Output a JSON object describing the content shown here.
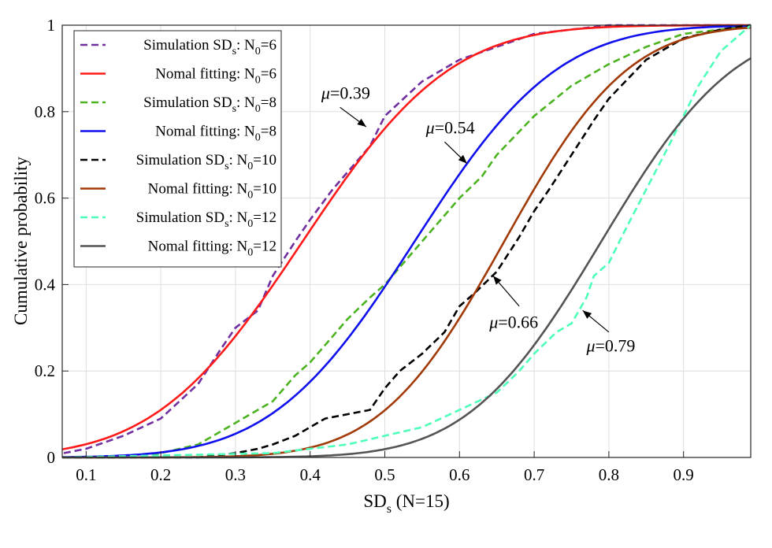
{
  "chart_data": {
    "type": "line",
    "title": "",
    "xlabel": "SD",
    "xlabel_sub": "s",
    "xlabel_suffix": " (N=15)",
    "ylabel": "Cumulative probability",
    "xlim": [
      0.068,
      0.99
    ],
    "ylim": [
      0,
      1
    ],
    "grid": true,
    "legend_position": "top-left",
    "xticks": [
      "0.1",
      "0.2",
      "0.3",
      "0.4",
      "0.5",
      "0.6",
      "0.7",
      "0.8",
      "0.9"
    ],
    "xtick_values": [
      0.1,
      0.2,
      0.3,
      0.4,
      0.5,
      0.6,
      0.7,
      0.8,
      0.9
    ],
    "yticks": [
      "0",
      "0.2",
      "0.4",
      "0.6",
      "0.8",
      "1"
    ],
    "ytick_values": [
      0,
      0.2,
      0.4,
      0.6,
      0.8,
      1
    ],
    "series": [
      {
        "name": "Simulation SDs: N0=6",
        "label_pre": "Simulation SD",
        "label_sub": "s",
        "label_mid": ": N",
        "label_sub2": "0",
        "label_post": "=6",
        "style": "dashed",
        "color": "#7030a0",
        "x": [
          0.07,
          0.1,
          0.15,
          0.2,
          0.25,
          0.28,
          0.3,
          0.33,
          0.35,
          0.38,
          0.4,
          0.43,
          0.45,
          0.48,
          0.5,
          0.55,
          0.6,
          0.65,
          0.7,
          0.75,
          0.8,
          0.9,
          0.99
        ],
        "y": [
          0.01,
          0.02,
          0.05,
          0.09,
          0.17,
          0.25,
          0.3,
          0.34,
          0.42,
          0.5,
          0.55,
          0.62,
          0.66,
          0.72,
          0.79,
          0.87,
          0.92,
          0.95,
          0.98,
          0.99,
          1.0,
          1.0,
          1.0
        ]
      },
      {
        "name": "Nomal fitting: N0=6",
        "label_pre": "Nomal fitting",
        "label_sub": "",
        "label_mid": ": N",
        "label_sub2": "0",
        "label_post": "=6",
        "style": "solid",
        "color": "#ff1a1a",
        "mu": 0.39,
        "sigma": 0.155
      },
      {
        "name": "Simulation SDs: N0=8",
        "label_pre": "Simulation SD",
        "label_sub": "s",
        "label_mid": ": N",
        "label_sub2": "0",
        "label_post": "=8",
        "style": "dashed",
        "color": "#4cb320",
        "x": [
          0.07,
          0.15,
          0.2,
          0.25,
          0.3,
          0.35,
          0.38,
          0.4,
          0.43,
          0.45,
          0.48,
          0.5,
          0.55,
          0.58,
          0.6,
          0.63,
          0.65,
          0.7,
          0.75,
          0.8,
          0.85,
          0.9,
          0.95,
          0.99
        ],
        "y": [
          0.0,
          0.0,
          0.01,
          0.03,
          0.08,
          0.13,
          0.19,
          0.22,
          0.28,
          0.32,
          0.37,
          0.4,
          0.5,
          0.56,
          0.6,
          0.65,
          0.7,
          0.79,
          0.86,
          0.91,
          0.95,
          0.98,
          0.99,
          1.0
        ]
      },
      {
        "name": "Nomal fitting: N0=8",
        "label_pre": "Nomal fitting",
        "label_sub": "",
        "label_mid": ": N",
        "label_sub2": "0",
        "label_post": "=8",
        "style": "solid",
        "color": "#1010ee",
        "mu": 0.54,
        "sigma": 0.15
      },
      {
        "name": "Simulation SDs: N0=10",
        "label_pre": "Simulation SD",
        "label_sub": "s",
        "label_mid": ": N",
        "label_sub2": "0",
        "label_post": "=10",
        "style": "dashed",
        "color": "#000000",
        "x": [
          0.07,
          0.25,
          0.3,
          0.33,
          0.35,
          0.38,
          0.4,
          0.42,
          0.45,
          0.48,
          0.5,
          0.52,
          0.55,
          0.58,
          0.6,
          0.62,
          0.65,
          0.68,
          0.7,
          0.72,
          0.75,
          0.78,
          0.8,
          0.85,
          0.9,
          0.95,
          0.99
        ],
        "y": [
          0.0,
          0.0,
          0.01,
          0.02,
          0.03,
          0.05,
          0.07,
          0.09,
          0.1,
          0.11,
          0.16,
          0.2,
          0.24,
          0.29,
          0.35,
          0.38,
          0.43,
          0.51,
          0.57,
          0.62,
          0.7,
          0.78,
          0.83,
          0.92,
          0.97,
          0.99,
          1.0
        ]
      },
      {
        "name": "Nomal fitting: N0=10",
        "label_pre": "Nomal fitting",
        "label_sub": "",
        "label_mid": ": N",
        "label_sub2": "0",
        "label_post": "=10",
        "style": "solid",
        "color": "#a23a08",
        "mu": 0.66,
        "sigma": 0.13
      },
      {
        "name": "Simulation SDs: N0=12",
        "label_pre": "Simulation SD",
        "label_sub": "s",
        "label_mid": ": N",
        "label_sub2": "0",
        "label_post": "=12",
        "style": "dashed",
        "color": "#4dffb8",
        "x": [
          0.07,
          0.35,
          0.4,
          0.45,
          0.5,
          0.55,
          0.6,
          0.65,
          0.68,
          0.7,
          0.73,
          0.75,
          0.77,
          0.78,
          0.8,
          0.82,
          0.85,
          0.88,
          0.9,
          0.92,
          0.95,
          0.97,
          0.99
        ],
        "y": [
          0.0,
          0.01,
          0.02,
          0.03,
          0.05,
          0.07,
          0.11,
          0.15,
          0.2,
          0.24,
          0.29,
          0.31,
          0.37,
          0.42,
          0.45,
          0.52,
          0.62,
          0.72,
          0.79,
          0.86,
          0.94,
          0.97,
          1.0
        ]
      },
      {
        "name": "Nomal fitting: N0=12",
        "label_pre": "Nomal fitting",
        "label_sub": "",
        "label_mid": ": N",
        "label_sub2": "0",
        "label_post": "=12",
        "style": "solid",
        "color": "#545454",
        "mu": 0.79,
        "sigma": 0.14
      }
    ],
    "annotations": [
      {
        "text": "=0.39",
        "symbol": "μ",
        "label_at": [
          0.415,
          0.83
        ],
        "arrow_from": [
          0.44,
          0.81
        ],
        "arrow_to": [
          0.475,
          0.765
        ]
      },
      {
        "text": "=0.54",
        "symbol": "μ",
        "label_at": [
          0.555,
          0.75
        ],
        "arrow_from": [
          0.58,
          0.73
        ],
        "arrow_to": [
          0.61,
          0.68
        ]
      },
      {
        "text": "=0.66",
        "symbol": "μ",
        "label_at": [
          0.64,
          0.3
        ],
        "arrow_from": [
          0.68,
          0.35
        ],
        "arrow_to": [
          0.645,
          0.42
        ]
      },
      {
        "text": "=0.79",
        "symbol": "μ",
        "label_at": [
          0.77,
          0.245
        ],
        "arrow_from": [
          0.8,
          0.29
        ],
        "arrow_to": [
          0.765,
          0.34
        ]
      }
    ]
  }
}
